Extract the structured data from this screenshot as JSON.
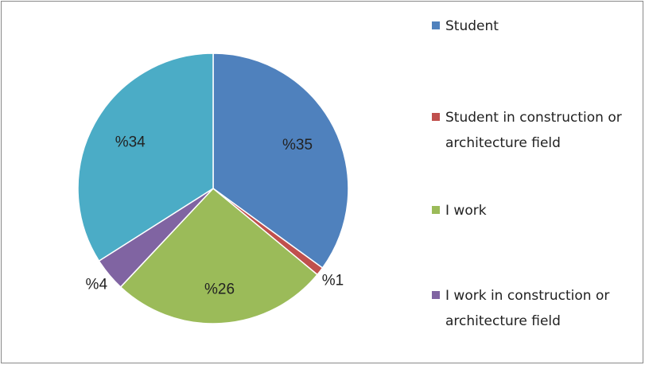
{
  "chart_data": {
    "type": "pie",
    "categories": [
      "Student",
      "Student in construction or architecture field",
      "I work",
      "I work in construction or architecture field",
      null
    ],
    "values": [
      35,
      1,
      26,
      4,
      34
    ],
    "value_labels": [
      "%35",
      "%1",
      "%26",
      "%4",
      "%34"
    ],
    "colors": [
      "#4f81bd",
      "#c0504d",
      "#9bbb59",
      "#8064a2",
      "#4bacc6"
    ],
    "legend": "right"
  }
}
